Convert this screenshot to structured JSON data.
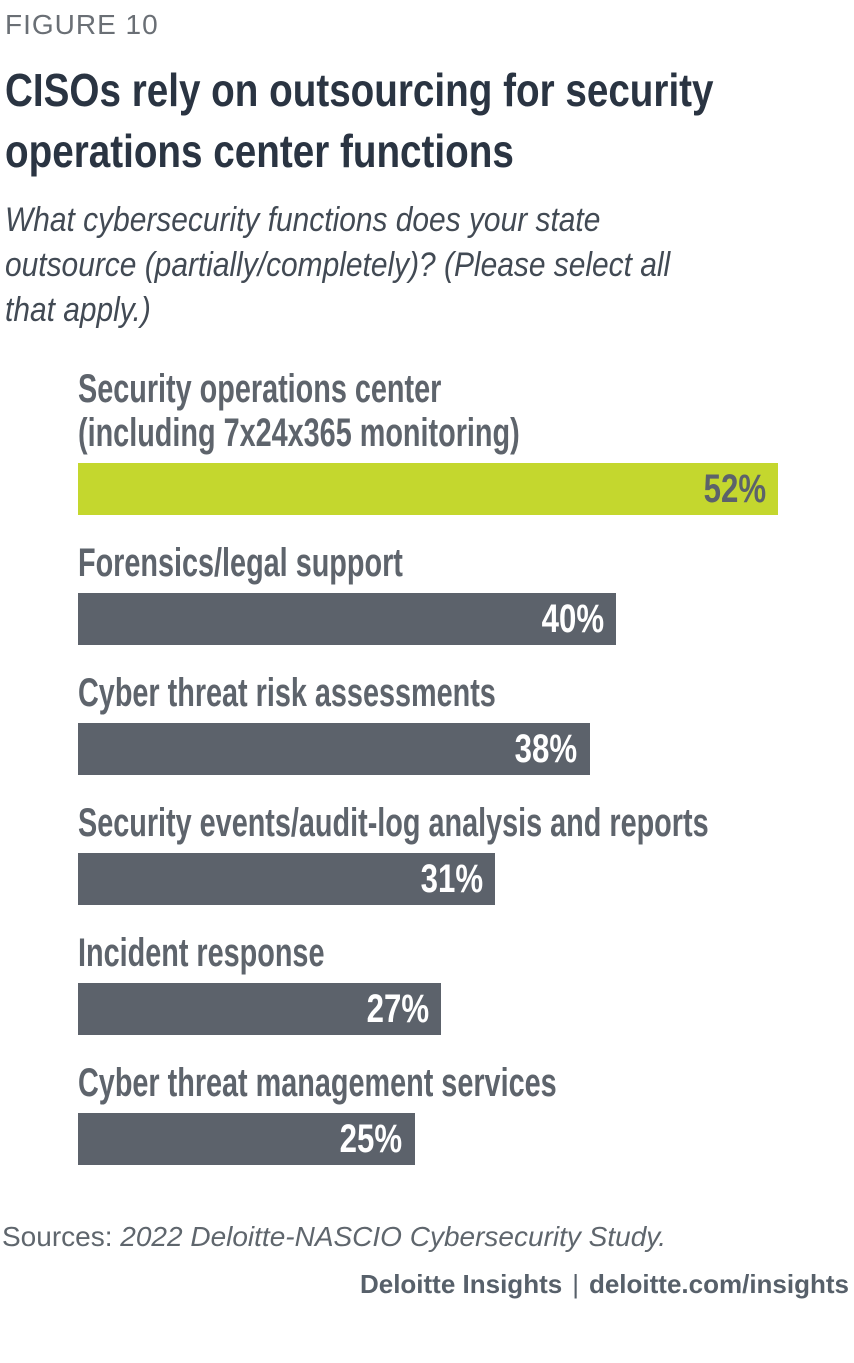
{
  "figure_label": "FIGURE 10",
  "title_lines": [
    "CISOs rely on outsourcing for security",
    "operations center functions"
  ],
  "subtitle_lines": [
    "What cybersecurity functions does your state",
    "outsource (partially/completely)? (Please select all",
    "that apply.)"
  ],
  "chart_data": {
    "type": "bar",
    "orientation": "horizontal",
    "unit": "%",
    "title": "CISOs rely on outsourcing for security operations center functions",
    "subtitle": "What cybersecurity functions does your state outsource (partially/completely)? (Please select all that apply.)",
    "categories": [
      "Security operations center (including 7x24x365 monitoring)",
      "Forensics/legal support",
      "Cyber threat risk assessments",
      "Security events/audit-log analysis and reports",
      "Incident response",
      "Cyber threat management services"
    ],
    "values": [
      52,
      40,
      38,
      31,
      27,
      25
    ],
    "xlim": [
      0,
      52
    ],
    "grid": false,
    "legend": false,
    "bars": [
      {
        "label_lines": [
          "Security operations center",
          "(including 7x24x365 monitoring)"
        ],
        "value": 52,
        "highlight": true
      },
      {
        "label_lines": [
          "Forensics/legal support"
        ],
        "value": 40,
        "highlight": false
      },
      {
        "label_lines": [
          "Cyber threat risk assessments"
        ],
        "value": 38,
        "highlight": false
      },
      {
        "label_lines": [
          "Security events/audit-log analysis and reports"
        ],
        "value": 31,
        "highlight": false
      },
      {
        "label_lines": [
          "Incident response"
        ],
        "value": 27,
        "highlight": false
      },
      {
        "label_lines": [
          "Cyber threat management services"
        ],
        "value": 25,
        "highlight": false
      }
    ],
    "colors": {
      "highlight_bar": "#C4D72E",
      "bar": "#5C626B",
      "value_on_bar": "#FFFFFF",
      "value_on_highlight": "#5C626B",
      "label_text": "#5E646C",
      "title_text": "#2A3442"
    }
  },
  "sources": {
    "prefix": "Sources: ",
    "citation": "2022 Deloitte-NASCIO Cybersecurity Study."
  },
  "footer": {
    "brand": "Deloitte Insights",
    "separator": "|",
    "link": "deloitte.com/insights"
  }
}
